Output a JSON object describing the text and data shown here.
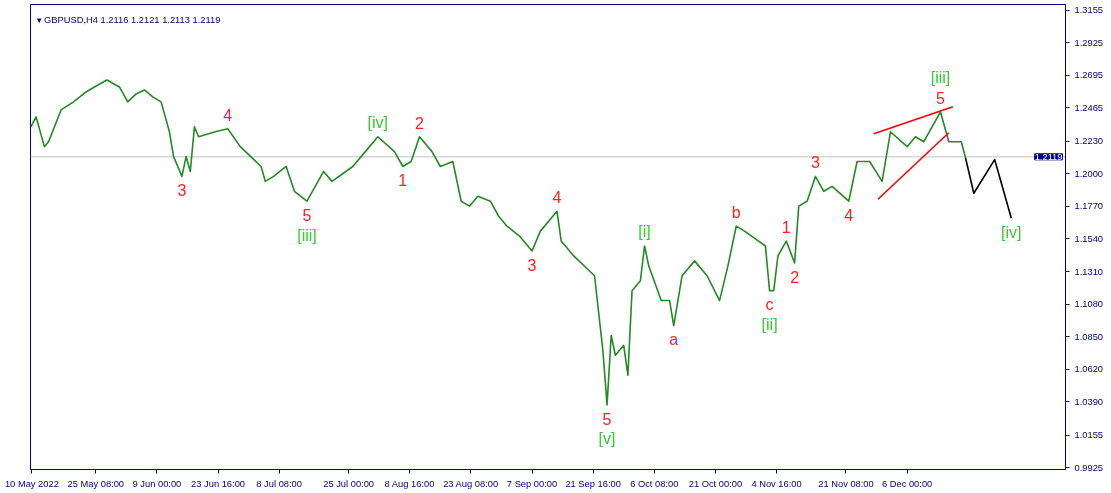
{
  "chart_data": {
    "type": "line",
    "title": "▾ GBPUSD,H4  1.2116 1.2121 1.2113 1.2119",
    "xlim": [
      "2022-05-09T16:00",
      "2023-01-13T00:00"
    ],
    "ylim": [
      0.9913,
      1.3194
    ],
    "xticks": [
      {
        "value": "2022-05-10T00:00",
        "label": "10 May 2022"
      },
      {
        "value": "2022-05-25T08:00",
        "label": "25 May 08:00"
      },
      {
        "value": "2022-06-09T00:00",
        "label": "9 Jun 00:00"
      },
      {
        "value": "2022-06-23T16:00",
        "label": "23 Jun 16:00"
      },
      {
        "value": "2022-07-08T08:00",
        "label": "8 Jul 08:00"
      },
      {
        "value": "2022-07-25T00:00",
        "label": "25 Jul 00:00"
      },
      {
        "value": "2022-08-08T16:00",
        "label": "8 Aug 16:00"
      },
      {
        "value": "2022-08-23T08:00",
        "label": "23 Aug 08:00"
      },
      {
        "value": "2022-09-07T00:00",
        "label": "7 Sep 00:00"
      },
      {
        "value": "2022-09-21T16:00",
        "label": "21 Sep 16:00"
      },
      {
        "value": "2022-10-06T08:00",
        "label": "6 Oct 08:00"
      },
      {
        "value": "2022-10-21T00:00",
        "label": "21 Oct 00:00"
      },
      {
        "value": "2022-11-04T16:00",
        "label": "4 Nov 16:00"
      },
      {
        "value": "2022-11-21T08:00",
        "label": "21 Nov 08:00"
      },
      {
        "value": "2022-12-06T00:00",
        "label": "6 Dec 00:00"
      }
    ],
    "yticks": [
      {
        "value": 0.9925,
        "label": "0.9925"
      },
      {
        "value": 1.0155,
        "label": "1.0155"
      },
      {
        "value": 1.039,
        "label": "1.0390"
      },
      {
        "value": 1.062,
        "label": "1.0620"
      },
      {
        "value": 1.085,
        "label": "1.0850"
      },
      {
        "value": 1.108,
        "label": "1.1080"
      },
      {
        "value": 1.131,
        "label": "1.1310"
      },
      {
        "value": 1.154,
        "label": "1.1540"
      },
      {
        "value": 1.177,
        "label": "1.1770"
      },
      {
        "value": 1.2,
        "label": "1.2000"
      },
      {
        "value": 1.223,
        "label": "1.2230"
      },
      {
        "value": 1.2465,
        "label": "1.2465"
      },
      {
        "value": 1.2695,
        "label": "1.2695"
      },
      {
        "value": 1.2925,
        "label": "1.2925"
      },
      {
        "value": 1.3155,
        "label": "1.3155"
      }
    ],
    "ref_lines": [
      {
        "axis": "y",
        "value": 1.2119,
        "label": "1.2119",
        "color": "#c0c0c0"
      }
    ],
    "series": [
      {
        "color": "#228b22",
        "x": [
          "2022-05-09T18:00",
          "2022-05-11",
          "2022-05-13",
          "2022-05-14",
          "2022-05-17",
          "2022-05-20",
          "2022-05-23",
          "2022-05-25",
          "2022-05-28",
          "2022-05-31",
          "2022-06-02",
          "2022-06-04",
          "2022-06-06",
          "2022-06-08",
          "2022-06-10",
          "2022-06-12",
          "2022-06-13",
          "2022-06-15",
          "2022-06-16",
          "2022-06-17",
          "2022-06-18",
          "2022-06-19",
          "2022-06-23",
          "2022-06-26",
          "2022-06-29",
          "2022-07-04",
          "2022-07-05",
          "2022-07-07",
          "2022-07-10",
          "2022-07-12",
          "2022-07-15",
          "2022-07-19",
          "2022-07-21",
          "2022-07-26",
          "2022-07-29",
          "2022-08-01",
          "2022-08-05",
          "2022-08-07",
          "2022-08-09",
          "2022-08-11",
          "2022-08-14",
          "2022-08-16",
          "2022-08-19",
          "2022-08-21",
          "2022-08-23",
          "2022-08-25",
          "2022-08-28",
          "2022-08-30",
          "2022-09-01",
          "2022-09-04",
          "2022-09-07",
          "2022-09-09",
          "2022-09-13",
          "2022-09-14",
          "2022-09-17",
          "2022-09-22",
          "2022-09-24",
          "2022-09-25",
          "2022-09-26",
          "2022-09-27",
          "2022-09-29",
          "2022-09-30",
          "2022-10-01",
          "2022-10-03",
          "2022-10-04",
          "2022-10-05",
          "2022-10-08",
          "2022-10-10",
          "2022-10-11",
          "2022-10-13",
          "2022-10-16",
          "2022-10-19",
          "2022-10-22",
          "2022-10-24",
          "2022-10-26",
          "2022-10-28",
          "2022-11-02",
          "2022-11-03",
          "2022-11-04",
          "2022-11-05",
          "2022-11-07",
          "2022-11-09",
          "2022-11-10",
          "2022-11-12",
          "2022-11-14",
          "2022-11-16",
          "2022-11-18",
          "2022-11-22",
          "2022-11-24",
          "2022-11-27",
          "2022-11-30",
          "2022-12-02",
          "2022-12-06",
          "2022-12-08",
          "2022-12-10",
          "2022-12-14",
          "2022-12-16",
          "2022-12-19",
          "2022-12-20"
        ],
        "values": [
          1.2331,
          1.2401,
          1.2191,
          1.2226,
          1.245,
          1.2507,
          1.2577,
          1.2612,
          1.2661,
          1.2612,
          1.2507,
          1.2563,
          1.2591,
          1.2542,
          1.2507,
          1.2296,
          1.2121,
          1.1981,
          1.2121,
          1.2016,
          1.2331,
          1.2261,
          1.2296,
          1.2317,
          1.2191,
          1.2051,
          1.1946,
          1.1981,
          1.2051,
          1.1876,
          1.1806,
          1.2016,
          1.1946,
          1.2051,
          1.2156,
          1.2261,
          1.2156,
          1.2051,
          1.2086,
          1.2261,
          1.2156,
          1.2051,
          1.2086,
          1.1806,
          1.1771,
          1.1841,
          1.1806,
          1.17,
          1.163,
          1.156,
          1.1455,
          1.1595,
          1.1735,
          1.1525,
          1.142,
          1.128,
          1.0754,
          1.0369,
          1.0859,
          1.0719,
          1.0789,
          1.0579,
          1.1175,
          1.1245,
          1.149,
          1.135,
          1.1105,
          1.1105,
          1.0929,
          1.128,
          1.1385,
          1.128,
          1.1105,
          1.135,
          1.163,
          1.1595,
          1.149,
          1.1175,
          1.1175,
          1.142,
          1.1525,
          1.1371,
          1.1771,
          1.1806,
          1.1981,
          1.1876,
          1.1911,
          1.1806,
          1.2086,
          1.2086,
          1.1946,
          1.2296,
          1.2191,
          1.2261,
          1.2226,
          1.2436,
          1.2226,
          1.2226,
          1.2114
        ]
      },
      {
        "color": "#ff0000",
        "x": [
          "2022-11-28",
          "2022-12-17"
        ],
        "values": [
          1.2282,
          1.2472
        ]
      },
      {
        "color": "#ff0000",
        "x": [
          "2022-11-29",
          "2022-12-16"
        ],
        "values": [
          1.182,
          1.2289
        ]
      },
      {
        "color": "#000000",
        "x": [
          "2022-12-20",
          "2022-12-22",
          "2022-12-27",
          "2022-12-31"
        ],
        "values": [
          1.2114,
          1.1862,
          1.21,
          1.1686
        ]
      }
    ],
    "annotations": [
      {
        "text": "3",
        "x": "2022-06-15",
        "y": 1.1981
      },
      {
        "text": "4",
        "x": "2022-06-26",
        "y": 1.2317
      },
      {
        "text": "5",
        "x": "2022-07-15",
        "y": 1.1806
      },
      {
        "text": "[iii]",
        "x": "2022-07-15",
        "y": 1.1806
      },
      {
        "text": "[iv]",
        "x": "2022-08-01",
        "y": 1.2261
      },
      {
        "text": "1",
        "x": "2022-08-07",
        "y": 1.2051
      },
      {
        "text": "2",
        "x": "2022-08-11",
        "y": 1.2261
      },
      {
        "text": "3",
        "x": "2022-09-07",
        "y": 1.1455
      },
      {
        "text": "4",
        "x": "2022-09-13",
        "y": 1.1735
      },
      {
        "text": "5",
        "x": "2022-09-25",
        "y": 1.0369
      },
      {
        "text": "[v]",
        "x": "2022-09-25",
        "y": 1.0369
      },
      {
        "text": "[i]",
        "x": "2022-10-04",
        "y": 1.149
      },
      {
        "text": "a",
        "x": "2022-10-11",
        "y": 1.0929
      },
      {
        "text": "b",
        "x": "2022-10-26",
        "y": 1.163
      },
      {
        "text": "c",
        "x": "2022-11-03",
        "y": 1.1175
      },
      {
        "text": "[ii]",
        "x": "2022-11-03",
        "y": 1.1175
      },
      {
        "text": "1",
        "x": "2022-11-07",
        "y": 1.1525
      },
      {
        "text": "2",
        "x": "2022-11-09",
        "y": 1.1371
      },
      {
        "text": "3",
        "x": "2022-11-14",
        "y": 1.1981
      },
      {
        "text": "4",
        "x": "2022-11-22",
        "y": 1.1806
      },
      {
        "text": "5",
        "x": "2022-12-14",
        "y": 1.2436
      },
      {
        "text": "[iii]",
        "x": "2022-12-14",
        "y": 1.2436
      },
      {
        "text": "[iv]",
        "x": "2022-12-31",
        "y": 1.1686
      }
    ]
  }
}
